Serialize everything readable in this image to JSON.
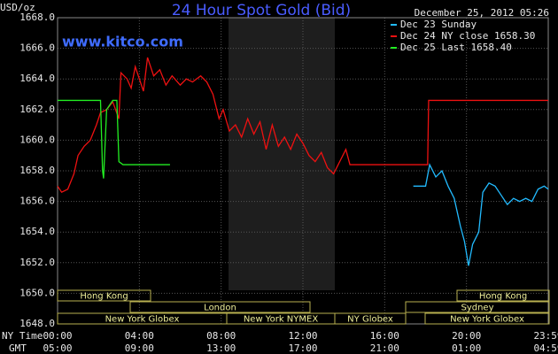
{
  "chart_data": {
    "type": "line",
    "title": "24 Hour Spot Gold (Bid)",
    "subtitle": "December 25, 2012 05:26",
    "site": "www.kitco.com",
    "y_label": "USD/oz",
    "x_label": "NY Time",
    "x2_label": "GMT",
    "xlim": [
      0,
      24
    ],
    "ylim": [
      1648,
      1668
    ],
    "xticks": [
      {
        "value": 0,
        "label": "00:00"
      },
      {
        "value": 4,
        "label": "04:00"
      },
      {
        "value": 8,
        "label": "08:00"
      },
      {
        "value": 12,
        "label": "12:00"
      },
      {
        "value": 16,
        "label": "16:00"
      },
      {
        "value": 20,
        "label": "20:00"
      },
      {
        "value": 24,
        "label": "23:59"
      }
    ],
    "x2ticks": [
      "05:00",
      "09:00",
      "13:00",
      "17:00",
      "21:00",
      "01:00",
      "04:59"
    ],
    "yticks": [
      {
        "value": 1648,
        "label": "1648.0"
      },
      {
        "value": 1650,
        "label": "1650.0"
      },
      {
        "value": 1652,
        "label": "1652.0"
      },
      {
        "value": 1654,
        "label": "1654.0"
      },
      {
        "value": 1656,
        "label": "1656.0"
      },
      {
        "value": 1658,
        "label": "1658.0"
      },
      {
        "value": 1660,
        "label": "1660.0"
      },
      {
        "value": 1662,
        "label": "1662.0"
      },
      {
        "value": 1664,
        "label": "1664.0"
      },
      {
        "value": 1666,
        "label": "1666.0"
      },
      {
        "value": 1668,
        "label": "1668.0"
      }
    ],
    "grid": true,
    "sessions": [
      "Hong Kong",
      "London",
      "New York Globex",
      "New York NYMEX",
      "NY Globex",
      "Sydney",
      "Hong Kong",
      "New York Globex"
    ],
    "series": [
      {
        "name": "Dec 23 Sunday",
        "color": "#22bbff",
        "x": [
          17.4,
          18.0,
          18.2,
          18.5,
          18.8,
          19.1,
          19.4,
          19.7,
          19.9,
          20.1,
          20.3,
          20.6,
          20.8,
          21.1,
          21.4,
          21.7,
          22.0,
          22.3,
          22.6,
          22.9,
          23.2,
          23.5,
          23.8,
          24.0
        ],
        "values": [
          1657.0,
          1657.0,
          1658.4,
          1657.6,
          1658.0,
          1657.0,
          1656.2,
          1654.4,
          1653.4,
          1651.8,
          1653.2,
          1654.0,
          1656.6,
          1657.2,
          1657.0,
          1656.4,
          1655.8,
          1656.2,
          1656.0,
          1656.2,
          1656.0,
          1656.8,
          1657.0,
          1656.8
        ]
      },
      {
        "name": "Dec 24 NY close 1658.30",
        "color": "#ee1111",
        "x": [
          0,
          0.2,
          0.5,
          0.8,
          1.0,
          1.3,
          1.6,
          1.9,
          2.1,
          2.4,
          2.7,
          3.0,
          3.1,
          3.4,
          3.6,
          3.8,
          4.0,
          4.2,
          4.4,
          4.7,
          5.0,
          5.3,
          5.6,
          6.0,
          6.3,
          6.6,
          7.0,
          7.3,
          7.6,
          7.9,
          8.1,
          8.4,
          8.7,
          9.0,
          9.3,
          9.6,
          9.9,
          10.2,
          10.5,
          10.8,
          11.1,
          11.4,
          11.7,
          12.0,
          12.3,
          12.6,
          12.9,
          13.2,
          13.5,
          13.8,
          14.1,
          14.3,
          18.1,
          18.15,
          24
        ],
        "values": [
          1657.0,
          1656.6,
          1656.8,
          1657.8,
          1659.0,
          1659.6,
          1660.0,
          1661.0,
          1661.8,
          1662.0,
          1662.5,
          1661.4,
          1664.4,
          1664.0,
          1663.4,
          1664.8,
          1664.0,
          1663.2,
          1665.4,
          1664.2,
          1664.6,
          1663.6,
          1664.2,
          1663.6,
          1664.0,
          1663.8,
          1664.2,
          1663.8,
          1663.0,
          1661.4,
          1662.0,
          1660.6,
          1661.0,
          1660.2,
          1661.4,
          1660.4,
          1661.2,
          1659.4,
          1661.0,
          1659.6,
          1660.2,
          1659.4,
          1660.4,
          1659.8,
          1659.0,
          1658.6,
          1659.2,
          1658.2,
          1657.8,
          1658.6,
          1659.4,
          1658.4,
          1658.4,
          1662.6,
          1662.6
        ]
      },
      {
        "name": "Dec 25 Last 1658.40",
        "color": "#22ee22",
        "x": [
          0,
          2.1,
          2.2,
          2.25,
          2.4,
          2.7,
          2.9,
          3.0,
          3.2,
          5.5
        ],
        "values": [
          1662.6,
          1662.6,
          1658.0,
          1657.5,
          1662.0,
          1662.6,
          1662.6,
          1658.6,
          1658.4,
          1658.4
        ]
      }
    ]
  }
}
